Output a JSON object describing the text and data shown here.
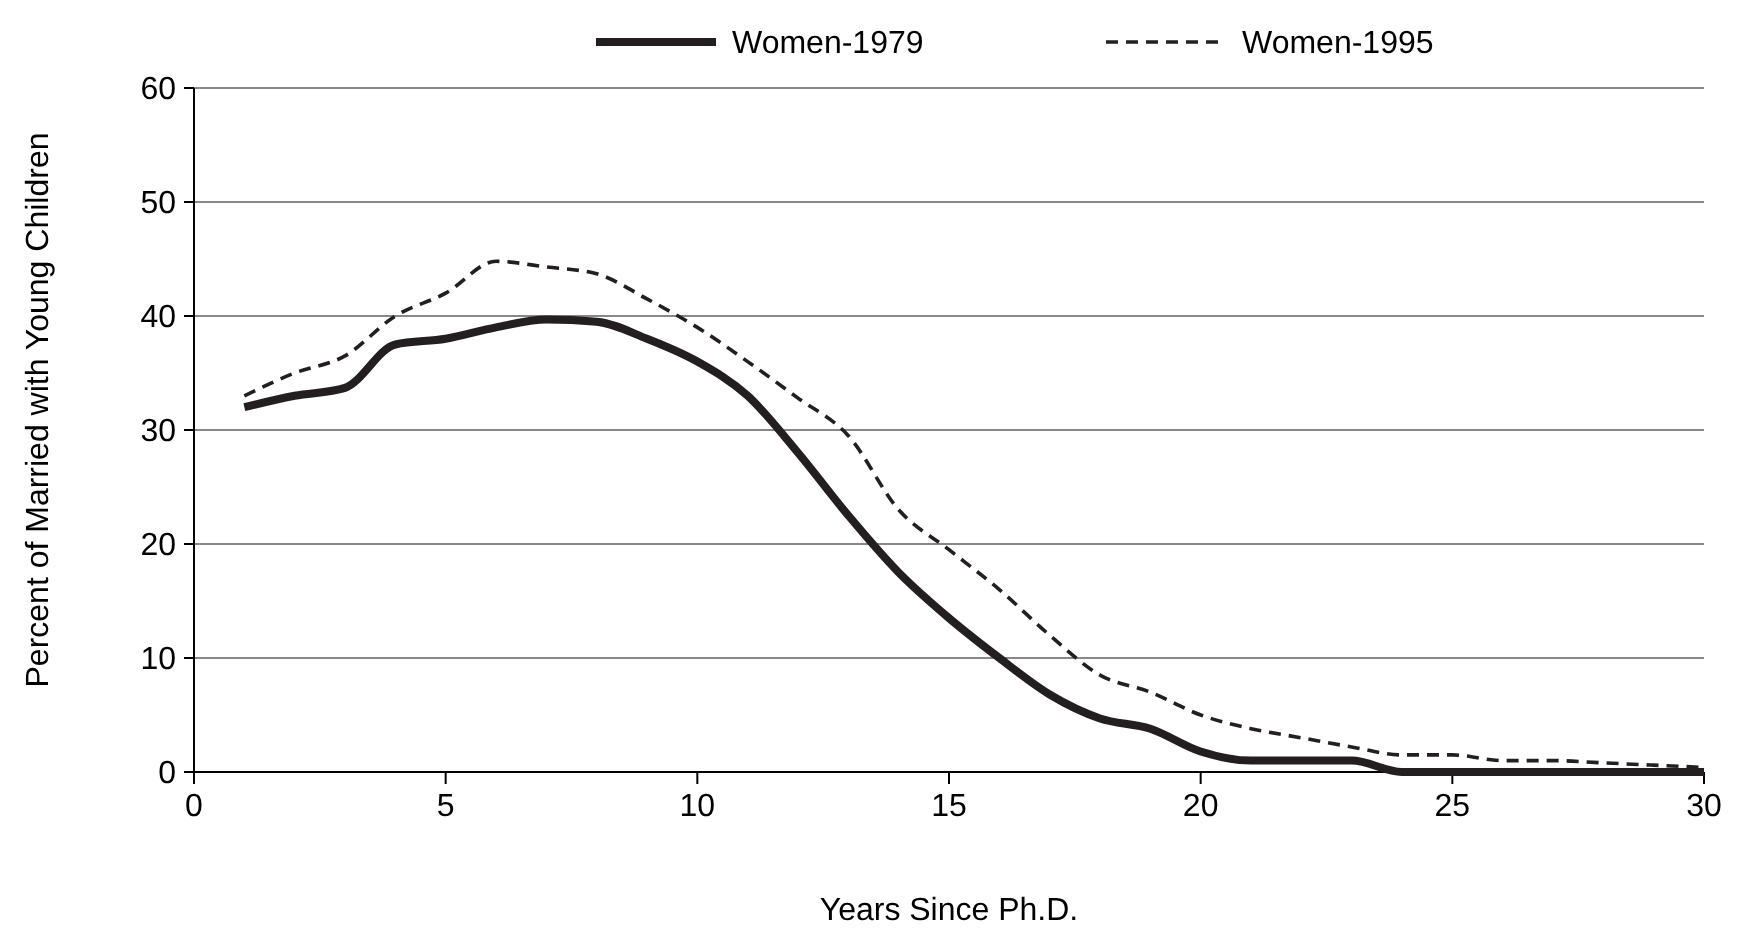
{
  "chart_data": {
    "type": "line",
    "xlabel": "Years Since Ph.D.",
    "ylabel": "Percent of Married with Young Children",
    "x": [
      1,
      2,
      3,
      4,
      5,
      6,
      7,
      8,
      9,
      10,
      11,
      12,
      13,
      14,
      15,
      16,
      17,
      18,
      19,
      20,
      21,
      22,
      23,
      24,
      25,
      26,
      27,
      28,
      29,
      30
    ],
    "series": [
      {
        "name": "Women-1979",
        "color": "#231f20",
        "line_style": "solid",
        "values": [
          32,
          33,
          33.7,
          37.5,
          38,
          39,
          39.7,
          39.5,
          38,
          36,
          33,
          28,
          22.5,
          17.5,
          13.5,
          10,
          6.8,
          4.7,
          3.8,
          1.8,
          1,
          1,
          1,
          0,
          0,
          0,
          0,
          0,
          0,
          0
        ]
      },
      {
        "name": "Women-1995",
        "color": "#231f20",
        "line_style": "dashed",
        "values": [
          33,
          35,
          36.5,
          40,
          42,
          44.8,
          44.3,
          43.7,
          41.5,
          39,
          36,
          32.8,
          29.5,
          23,
          19.5,
          16,
          12,
          8.5,
          7,
          5,
          3.8,
          3,
          2.2,
          1.5,
          1.5,
          1,
          1,
          0.8,
          0.6,
          0.4
        ]
      }
    ],
    "xlim": [
      0,
      30
    ],
    "xticks": [
      0,
      5,
      10,
      15,
      20,
      25,
      30
    ],
    "ylim": [
      0,
      60
    ],
    "yticks": [
      0,
      10,
      20,
      30,
      40,
      50,
      60
    ],
    "grid": "y",
    "legend": "top"
  }
}
